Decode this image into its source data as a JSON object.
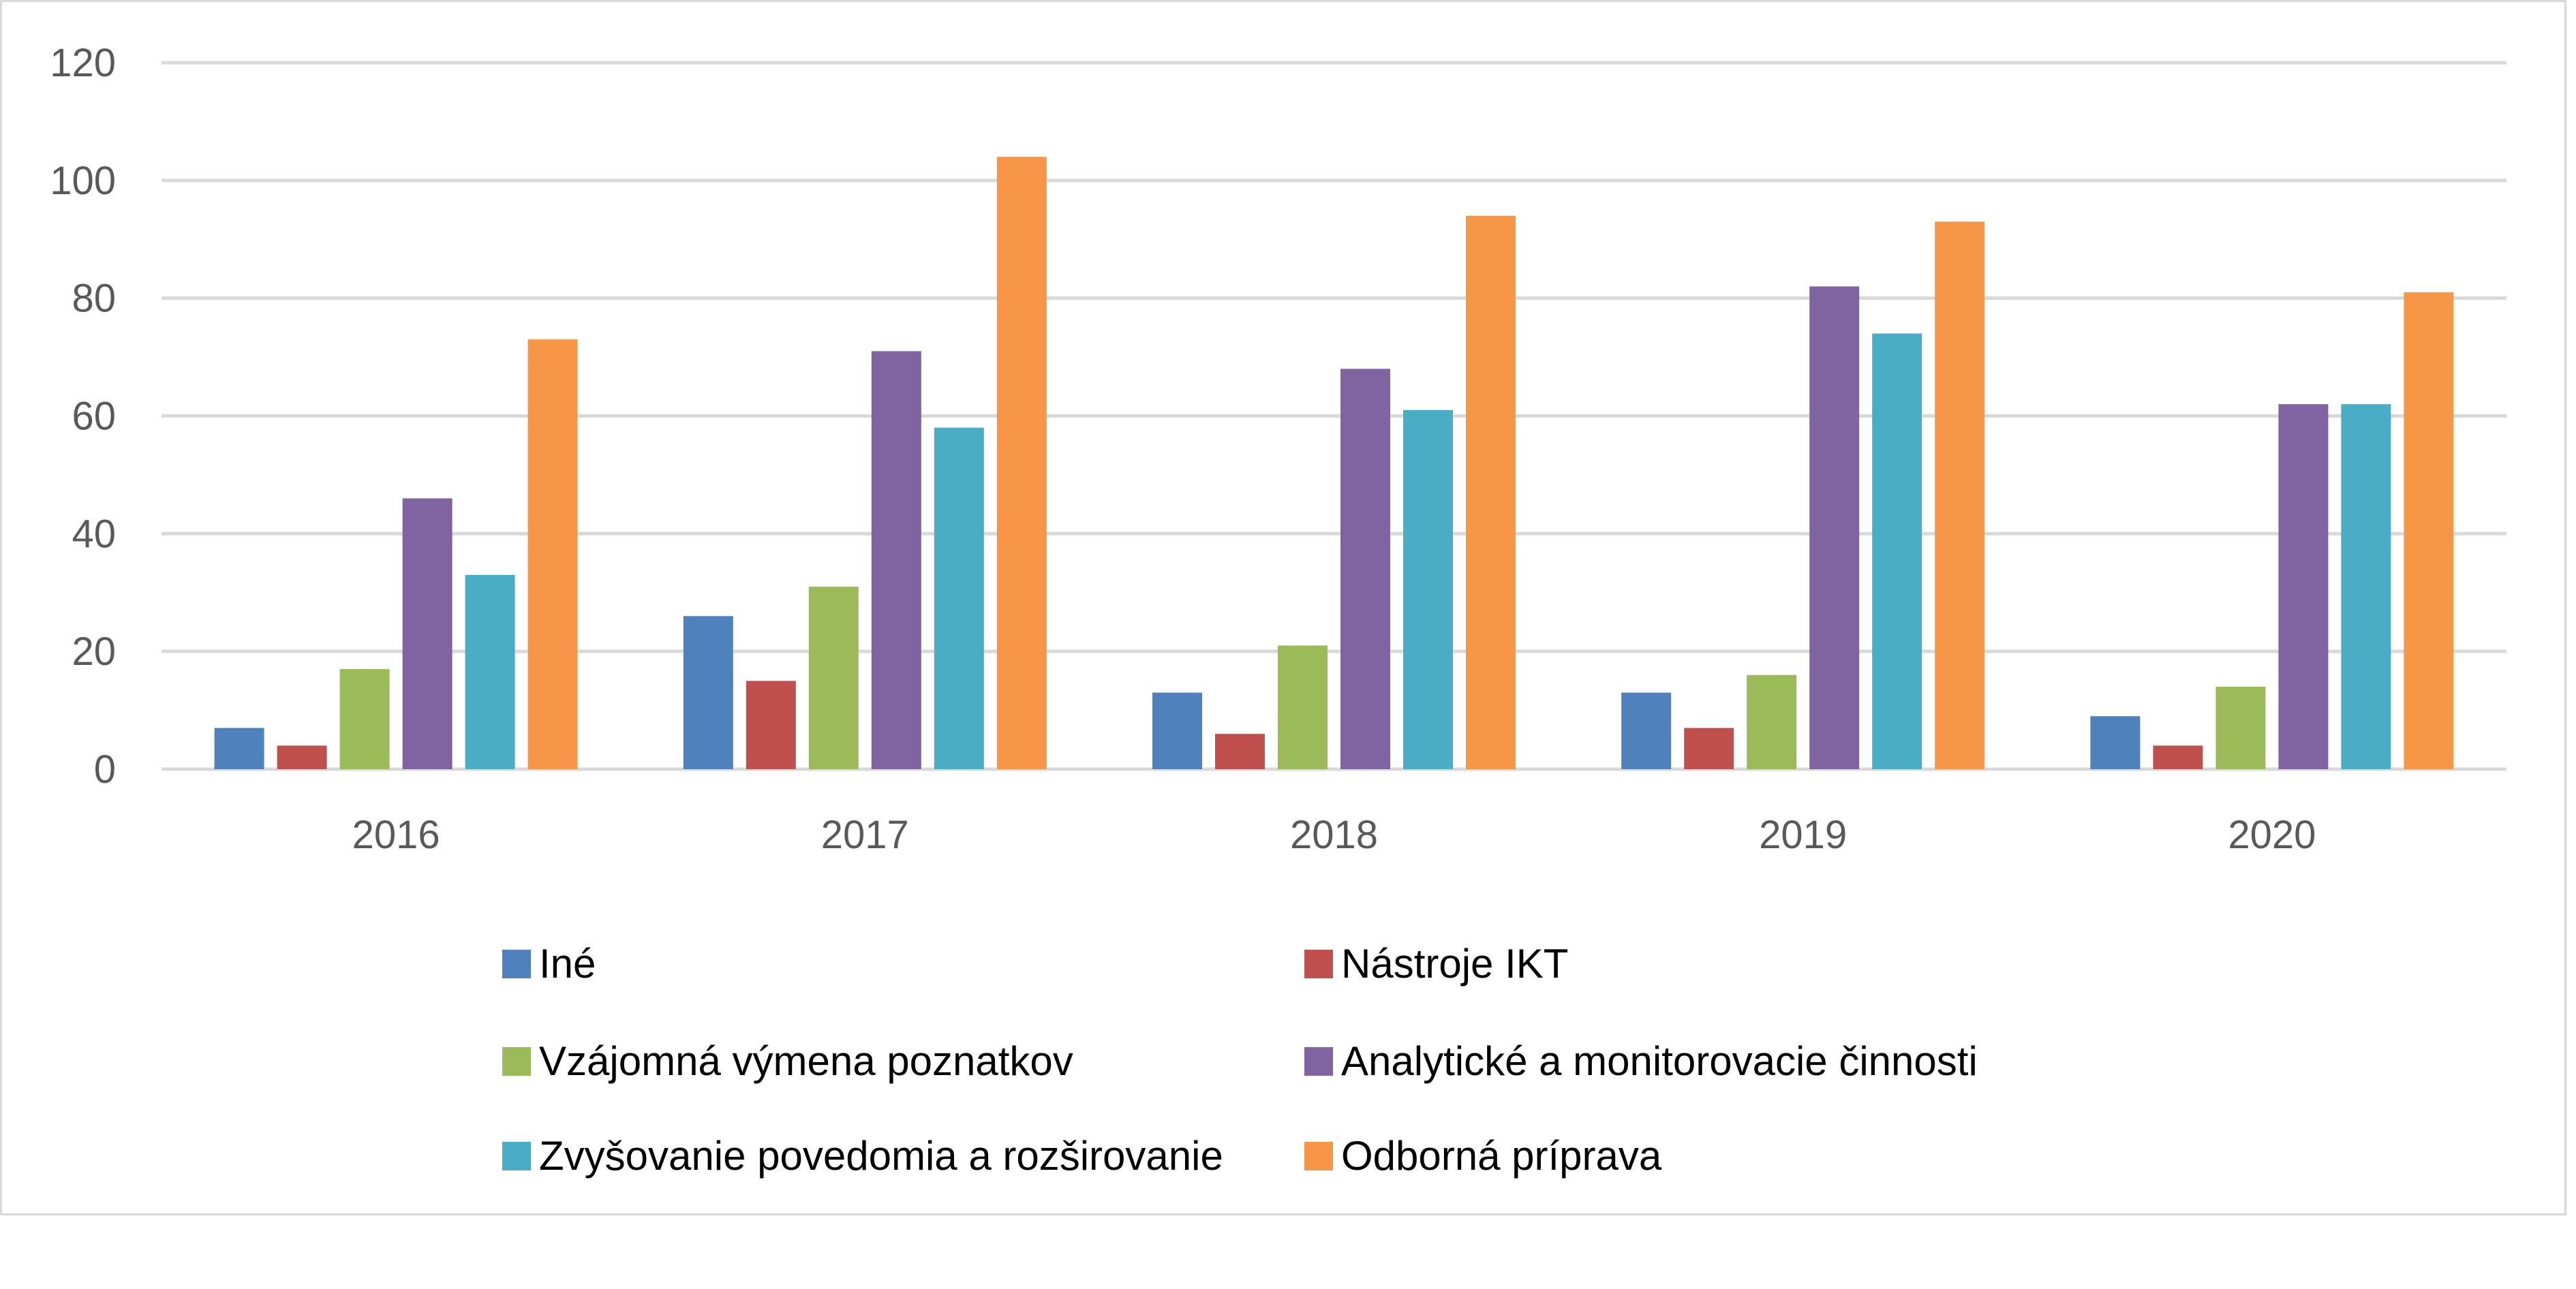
{
  "chart_data": {
    "type": "bar",
    "title": "",
    "xlabel": "",
    "ylabel": "",
    "ylim": [
      0,
      120
    ],
    "yticks": [
      "0",
      "20",
      "40",
      "60",
      "80",
      "100",
      "120"
    ],
    "grid": true,
    "legend_position": "bottom",
    "categories": [
      "2016",
      "2017",
      "2018",
      "2019",
      "2020"
    ],
    "series": [
      {
        "name": "Iné",
        "color": "#4f81bd",
        "values": [
          7,
          26,
          13,
          13,
          9
        ]
      },
      {
        "name": "Nástroje IKT",
        "color": "#c0504d",
        "values": [
          4,
          15,
          6,
          7,
          4
        ]
      },
      {
        "name": "Vzájomná výmena poznatkov",
        "color": "#9bbb59",
        "values": [
          17,
          31,
          21,
          16,
          14
        ]
      },
      {
        "name": "Analytické a monitorovacie činnosti",
        "color": "#8064a2",
        "values": [
          46,
          71,
          68,
          82,
          62
        ]
      },
      {
        "name": "Zvyšovanie povedomia a rozširovanie",
        "color": "#4bacc6",
        "values": [
          33,
          58,
          61,
          74,
          62
        ]
      },
      {
        "name": "Odborná príprava",
        "color": "#f79646",
        "values": [
          73,
          104,
          94,
          93,
          81
        ]
      }
    ]
  }
}
